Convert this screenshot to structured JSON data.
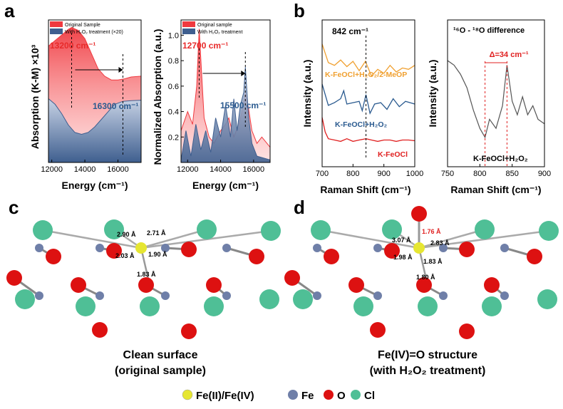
{
  "panels": {
    "a": "a",
    "b": "b",
    "c": "c",
    "d": "d"
  },
  "colors": {
    "original": "#f0393f",
    "h2o2": "#3f5f8f",
    "gold": "#f0a030",
    "blue": "#2a5a8f",
    "red": "#e02020",
    "gray": "#555555",
    "fe": "#6f7fa8",
    "o": "#dd1111",
    "cl": "#4fbf96",
    "fe2": "#e6e632"
  },
  "chart_data": [
    {
      "type": "area",
      "xlabel": "Energy (cm⁻¹)",
      "ylabel": "Absorption (K-M) ×10³",
      "xlim": [
        11800,
        17400
      ],
      "xticks": [
        "12000",
        "14000",
        "16000"
      ],
      "legend": [
        "Original Sample",
        "With H₂O₂ treatment (×20)"
      ],
      "annotations": [
        "13200 cm⁻¹",
        "16300 cm⁻¹"
      ],
      "series": [
        {
          "name": "Original Sample",
          "x": [
            11800,
            12200,
            12600,
            13000,
            13200,
            13600,
            14000,
            14400,
            14800,
            15200,
            15600,
            16000,
            16400,
            16800,
            17400
          ],
          "y": [
            31,
            32.5,
            34,
            35.5,
            36,
            35.2,
            33,
            29,
            25,
            23,
            22,
            22,
            22.3,
            22.8,
            23
          ]
        },
        {
          "name": "With H₂O₂ treatment (×20)",
          "x": [
            11800,
            12200,
            12600,
            13000,
            13400,
            13800,
            14200,
            14600,
            15000,
            15400,
            15800,
            16300,
            16800,
            17400
          ],
          "y": [
            17,
            15.5,
            13,
            10,
            8,
            7.5,
            8,
            9.5,
            11.5,
            13.5,
            15.5,
            16.3,
            16.5,
            16.6
          ]
        }
      ]
    },
    {
      "type": "area",
      "xlabel": "Energy (cm⁻¹)",
      "ylabel": "Normalized Absorption (a.u.)",
      "xlim": [
        11600,
        17000
      ],
      "ylim": [
        0,
        1.12
      ],
      "xticks": [
        "12000",
        "14000",
        "16000"
      ],
      "yticks": [
        "0.2",
        "0.4",
        "0.6",
        "0.8",
        "1.0"
      ],
      "legend": [
        "Original sample",
        "With H₂O₂ treatment"
      ],
      "annotations": [
        "12700 cm⁻¹",
        "15500 cm⁻¹"
      ],
      "series": [
        {
          "name": "Original sample",
          "x": [
            11600,
            12000,
            12300,
            12550,
            12700,
            12850,
            13000,
            13300,
            13600,
            14000,
            14300,
            14500,
            14800,
            15100,
            15300,
            15500,
            15700,
            15900,
            16200,
            16500,
            17000
          ],
          "y": [
            0.25,
            0.4,
            0.3,
            0.6,
            1.05,
            0.7,
            0.35,
            0.2,
            0.15,
            0.25,
            0.3,
            0.35,
            0.2,
            0.3,
            0.4,
            0.55,
            0.42,
            0.25,
            0.15,
            0.2,
            0.12
          ]
        },
        {
          "name": "With H₂O₂ treatment",
          "x": [
            11600,
            11900,
            12200,
            12500,
            12800,
            13100,
            13400,
            13700,
            14000,
            14300,
            14600,
            14800,
            15000,
            15200,
            15400,
            15500,
            15700,
            15900,
            16200,
            17000
          ],
          "y": [
            0.02,
            0.25,
            0.05,
            0.3,
            0.1,
            0.25,
            0.08,
            0.35,
            0.2,
            0.45,
            0.2,
            0.5,
            0.25,
            0.45,
            0.55,
            0.75,
            0.35,
            0.15,
            0.05,
            0.02
          ]
        }
      ]
    },
    {
      "type": "line",
      "xlabel": "Raman Shift (cm⁻¹)",
      "ylabel": "Intensity (a.u.)",
      "xlim": [
        700,
        1000
      ],
      "xticks": [
        "700",
        "800",
        "900",
        "1000"
      ],
      "annotations": [
        "842 cm⁻¹"
      ],
      "series": [
        {
          "name": "K-FeOCl+H₂O₂/2-MeOP",
          "x": [
            700,
            720,
            740,
            760,
            780,
            800,
            820,
            840,
            860,
            880,
            900,
            920,
            940,
            960,
            980,
            1000
          ],
          "y": [
            9.2,
            7.8,
            7.6,
            8.0,
            7.5,
            7.9,
            7.2,
            7.9,
            6.8,
            7.3,
            7.0,
            7.6,
            7.1,
            7.4,
            7.3,
            7.6
          ]
        },
        {
          "name": "K-FeOCl+H₂O₂",
          "x": [
            700,
            720,
            740,
            760,
            770,
            780,
            800,
            820,
            830,
            842,
            855,
            870,
            890,
            910,
            930,
            950,
            970,
            1000
          ],
          "y": [
            6.2,
            4.6,
            4.8,
            5.1,
            5.7,
            4.7,
            4.8,
            4.9,
            4.2,
            5.4,
            4.0,
            4.7,
            4.8,
            4.3,
            5.1,
            4.5,
            4.9,
            4.7
          ]
        },
        {
          "name": "K-FeOCl",
          "x": [
            700,
            710,
            720,
            740,
            760,
            780,
            800,
            820,
            842,
            860,
            880,
            900,
            920,
            940,
            960,
            980,
            1000
          ],
          "y": [
            3.7,
            2.6,
            2.1,
            2.0,
            1.9,
            2.1,
            1.9,
            2.0,
            2.1,
            2.0,
            1.9,
            2.0,
            2.0,
            1.9,
            2.0,
            2.0,
            1.95
          ]
        }
      ]
    },
    {
      "type": "line",
      "title": "¹⁶O - ¹⁸O difference",
      "xlabel": "Raman Shift (cm⁻¹)",
      "ylabel": "Intensity (a.u.)",
      "xlim": [
        750,
        900
      ],
      "xticks": [
        "750",
        "800",
        "850",
        "900"
      ],
      "annotations": [
        "Δ=34 cm⁻¹"
      ],
      "series": [
        {
          "name": "K-FeOCl+H₂O₂",
          "x": [
            750,
            760,
            770,
            780,
            790,
            800,
            808,
            815,
            825,
            835,
            842,
            850,
            858,
            866,
            874,
            882,
            890,
            900
          ],
          "y": [
            6.2,
            6.0,
            5.6,
            5.0,
            4.0,
            3.2,
            2.8,
            3.6,
            3.2,
            4.2,
            6.0,
            4.4,
            3.8,
            4.6,
            3.8,
            4.2,
            3.6,
            3.4
          ]
        }
      ]
    }
  ],
  "c": {
    "bonds": [
      "2.90 Å",
      "2.71 Å",
      "2.03 Å",
      "1.90 Å",
      "1.83 Å"
    ],
    "caption_1": "Clean surface",
    "caption_2": "(original sample)"
  },
  "d": {
    "bonds": [
      "3.07 Å",
      "1.76 Å",
      "2.83 Å",
      "1.98 Å",
      "1.83 Å",
      "1.80 Å"
    ],
    "caption_1": "Fe(IV)=O structure",
    "caption_2": "(with H₂O₂ treatment)"
  },
  "legend": {
    "items": [
      "Fe(II)/Fe(IV)",
      "Fe",
      "O",
      "Cl"
    ]
  }
}
